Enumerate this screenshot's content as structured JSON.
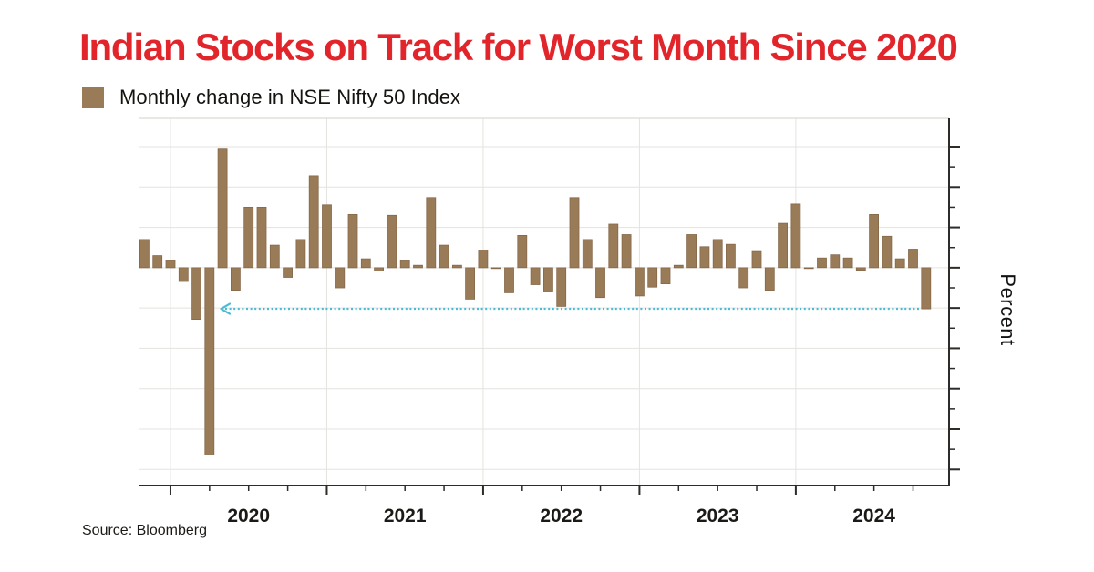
{
  "header": {
    "title": "Indian Stocks on Track for Worst Month Since 2020",
    "title_color": "#e2242b"
  },
  "legend": {
    "label": "Monthly change in NSE Nifty 50 Index",
    "swatch_color": "#9a7b57"
  },
  "source": "Source: Bloomberg",
  "chart_data": {
    "type": "bar",
    "title": "Monthly change in NSE Nifty 50 Index",
    "xlabel": "",
    "ylabel": "Percent",
    "ylim": [
      -27,
      18.5
    ],
    "y_major_ticks": [
      15,
      10,
      5,
      0,
      -5,
      -10,
      -15,
      -20,
      -25
    ],
    "y_minor_step": 2.5,
    "y_tick_labels_shown": false,
    "x_tick_labels": [
      "2020",
      "2021",
      "2022",
      "2023",
      "2024"
    ],
    "x_minor_ticks": "quarterly",
    "grid": {
      "horizontal_interval": 5,
      "vertical": "yearly",
      "color": "#e5e3df"
    },
    "bar_color": "#9a7b57",
    "bar_edge_color": "#85684a",
    "axis_color": "#2e2b28",
    "legend_position": "top-left",
    "annotation": {
      "type": "arrow",
      "direction": "left",
      "style": "dotted",
      "color": "#4abcd3",
      "y_value": -5.1,
      "from_month": "2024-10",
      "meaning": "October 2024 drop level traced back toward the 2020 bars (worst month since 2020)"
    },
    "series": [
      {
        "name": "Monthly change in NSE Nifty 50 Index",
        "unit": "%",
        "points": [
          [
            "2019-10",
            3.5
          ],
          [
            "2019-11",
            1.5
          ],
          [
            "2019-12",
            0.9
          ],
          [
            "2020-01",
            -1.7
          ],
          [
            "2020-02",
            -6.4
          ],
          [
            "2020-03",
            -23.2
          ],
          [
            "2020-04",
            14.7
          ],
          [
            "2020-05",
            -2.8
          ],
          [
            "2020-06",
            7.5
          ],
          [
            "2020-07",
            7.5
          ],
          [
            "2020-08",
            2.8
          ],
          [
            "2020-09",
            -1.2
          ],
          [
            "2020-10",
            3.5
          ],
          [
            "2020-11",
            11.4
          ],
          [
            "2020-12",
            7.8
          ],
          [
            "2021-01",
            -2.5
          ],
          [
            "2021-02",
            6.6
          ],
          [
            "2021-03",
            1.1
          ],
          [
            "2021-04",
            -0.4
          ],
          [
            "2021-05",
            6.5
          ],
          [
            "2021-06",
            0.9
          ],
          [
            "2021-07",
            0.3
          ],
          [
            "2021-08",
            8.7
          ],
          [
            "2021-09",
            2.8
          ],
          [
            "2021-10",
            0.3
          ],
          [
            "2021-11",
            -3.9
          ],
          [
            "2021-12",
            2.2
          ],
          [
            "2022-01",
            -0.1
          ],
          [
            "2022-02",
            -3.1
          ],
          [
            "2022-03",
            4.0
          ],
          [
            "2022-04",
            -2.1
          ],
          [
            "2022-05",
            -3.0
          ],
          [
            "2022-06",
            -4.8
          ],
          [
            "2022-07",
            8.7
          ],
          [
            "2022-08",
            3.5
          ],
          [
            "2022-09",
            -3.7
          ],
          [
            "2022-10",
            5.4
          ],
          [
            "2022-11",
            4.1
          ],
          [
            "2022-12",
            -3.5
          ],
          [
            "2023-01",
            -2.4
          ],
          [
            "2023-02",
            -2.0
          ],
          [
            "2023-03",
            0.3
          ],
          [
            "2023-04",
            4.1
          ],
          [
            "2023-05",
            2.6
          ],
          [
            "2023-06",
            3.5
          ],
          [
            "2023-07",
            2.9
          ],
          [
            "2023-08",
            -2.5
          ],
          [
            "2023-09",
            2.0
          ],
          [
            "2023-10",
            -2.8
          ],
          [
            "2023-11",
            5.5
          ],
          [
            "2023-12",
            7.9
          ],
          [
            "2024-01",
            0.0
          ],
          [
            "2024-02",
            1.2
          ],
          [
            "2024-03",
            1.6
          ],
          [
            "2024-04",
            1.2
          ],
          [
            "2024-05",
            -0.3
          ],
          [
            "2024-06",
            6.6
          ],
          [
            "2024-07",
            3.9
          ],
          [
            "2024-08",
            1.1
          ],
          [
            "2024-09",
            2.3
          ],
          [
            "2024-10",
            -5.1
          ]
        ]
      }
    ]
  }
}
